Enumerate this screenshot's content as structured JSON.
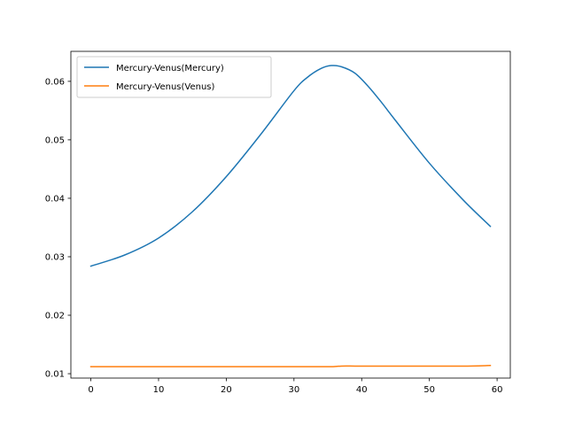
{
  "chart_data": {
    "type": "line",
    "title": "",
    "xlabel": "",
    "ylabel": "",
    "xlim": [
      -2.95,
      61.95
    ],
    "ylim": [
      0.00925,
      0.06513
    ],
    "x_ticks": [
      0,
      10,
      20,
      30,
      40,
      50,
      60
    ],
    "y_ticks": [
      0.01,
      0.02,
      0.03,
      0.04,
      0.05,
      0.06
    ],
    "x_tick_labels": [
      "0",
      "10",
      "20",
      "30",
      "40",
      "50",
      "60"
    ],
    "y_tick_labels": [
      "0.01",
      "0.02",
      "0.03",
      "0.04",
      "0.05",
      "0.06"
    ],
    "grid": false,
    "legend_position": "upper-left",
    "x": [
      0,
      5,
      10,
      15,
      20,
      25,
      30,
      32,
      34,
      35.5,
      37,
      39,
      41,
      43,
      45,
      50,
      55,
      59
    ],
    "series": [
      {
        "name": "Mercury-Venus(Mercury)",
        "color": "#1f77b4",
        "values": [
          0.0284,
          0.0303,
          0.0332,
          0.0377,
          0.0437,
          0.0508,
          0.0584,
          0.0607,
          0.0622,
          0.0627,
          0.0625,
          0.0614,
          0.0591,
          0.0563,
          0.0533,
          0.046,
          0.0397,
          0.0352
        ]
      },
      {
        "name": "Mercury-Venus(Venus)",
        "color": "#ff7f0e",
        "values": [
          0.0112,
          0.0112,
          0.0112,
          0.0112,
          0.0112,
          0.0112,
          0.0112,
          0.0112,
          0.0112,
          0.0112,
          0.0113,
          0.0113,
          0.0113,
          0.0113,
          0.0113,
          0.0113,
          0.0113,
          0.0114
        ]
      }
    ]
  }
}
